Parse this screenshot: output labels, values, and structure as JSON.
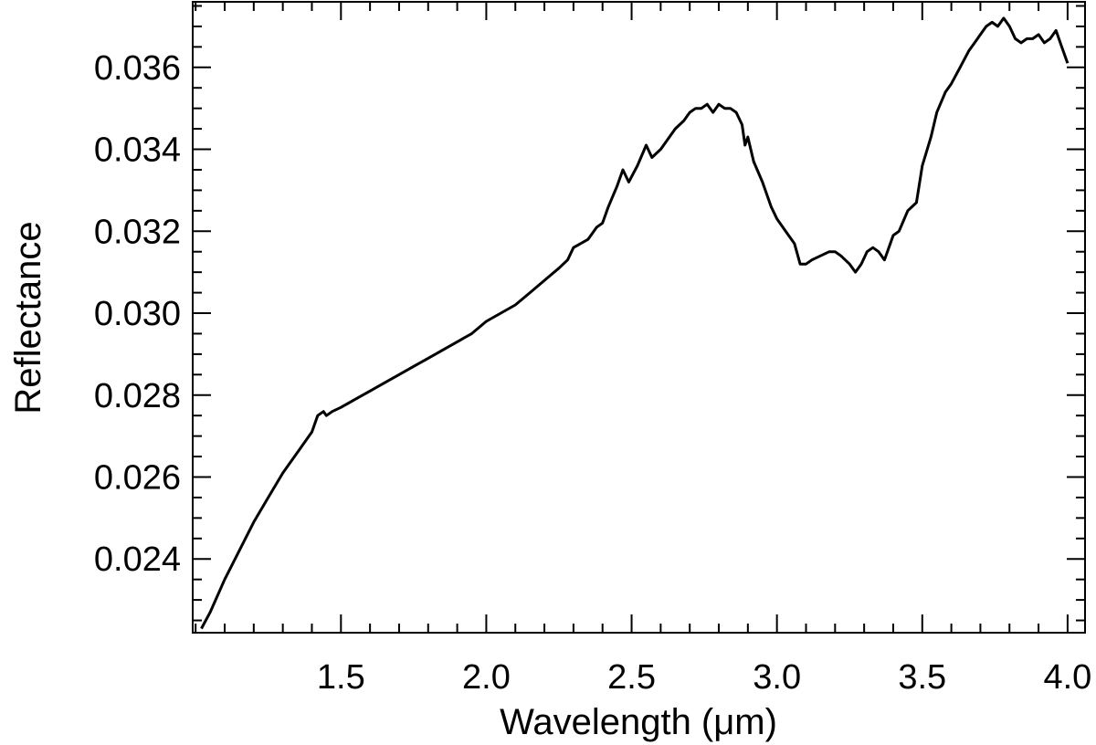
{
  "chart_data": {
    "type": "line",
    "title": "",
    "xlabel": "Wavelength (μm)",
    "ylabel": "Reflectance",
    "xlim": [
      0.99,
      4.06
    ],
    "ylim": [
      0.0222,
      0.0376
    ],
    "x_major_ticks": [
      1.5,
      2.0,
      2.5,
      3.0,
      3.5,
      4.0
    ],
    "x_tick_labels": [
      "1.5",
      "2.0",
      "2.5",
      "3.0",
      "3.5",
      "4.0"
    ],
    "x_minor_step": 0.1,
    "y_major_ticks": [
      0.024,
      0.026,
      0.028,
      0.03,
      0.032,
      0.034,
      0.036
    ],
    "y_tick_labels": [
      "0.024",
      "0.026",
      "0.028",
      "0.030",
      "0.032",
      "0.034",
      "0.036"
    ],
    "y_minor_step": 0.0005,
    "grid": false,
    "line_color": "#000000",
    "series": [
      {
        "x": [
          1.02,
          1.05,
          1.1,
          1.15,
          1.2,
          1.25,
          1.3,
          1.35,
          1.4,
          1.42,
          1.44,
          1.45,
          1.47,
          1.5,
          1.55,
          1.6,
          1.65,
          1.7,
          1.75,
          1.8,
          1.85,
          1.9,
          1.95,
          2.0,
          2.05,
          2.1,
          2.15,
          2.2,
          2.25,
          2.28,
          2.3,
          2.35,
          2.38,
          2.4,
          2.42,
          2.45,
          2.47,
          2.49,
          2.52,
          2.55,
          2.57,
          2.6,
          2.63,
          2.65,
          2.68,
          2.7,
          2.72,
          2.74,
          2.76,
          2.78,
          2.8,
          2.82,
          2.84,
          2.86,
          2.88,
          2.89,
          2.9,
          2.92,
          2.95,
          2.98,
          3.0,
          3.03,
          3.06,
          3.08,
          3.1,
          3.12,
          3.15,
          3.18,
          3.2,
          3.22,
          3.25,
          3.27,
          3.29,
          3.31,
          3.33,
          3.35,
          3.37,
          3.4,
          3.42,
          3.45,
          3.48,
          3.5,
          3.53,
          3.55,
          3.58,
          3.6,
          3.63,
          3.66,
          3.68,
          3.7,
          3.72,
          3.74,
          3.76,
          3.78,
          3.8,
          3.82,
          3.84,
          3.86,
          3.88,
          3.9,
          3.92,
          3.94,
          3.96,
          3.98,
          4.0
        ],
        "y": [
          0.0223,
          0.0227,
          0.0235,
          0.0242,
          0.0249,
          0.0255,
          0.0261,
          0.0266,
          0.0271,
          0.0275,
          0.0276,
          0.0275,
          0.0276,
          0.0277,
          0.0279,
          0.0281,
          0.0283,
          0.0285,
          0.0287,
          0.0289,
          0.0291,
          0.0293,
          0.0295,
          0.0298,
          0.03,
          0.0302,
          0.0305,
          0.0308,
          0.0311,
          0.0313,
          0.0316,
          0.0318,
          0.0321,
          0.0322,
          0.0326,
          0.0331,
          0.0335,
          0.0332,
          0.0336,
          0.0341,
          0.0338,
          0.034,
          0.0343,
          0.0345,
          0.0347,
          0.0349,
          0.035,
          0.035,
          0.0351,
          0.0349,
          0.0351,
          0.035,
          0.035,
          0.0349,
          0.0346,
          0.0341,
          0.0343,
          0.0337,
          0.0332,
          0.0326,
          0.0323,
          0.032,
          0.0317,
          0.0312,
          0.0312,
          0.0313,
          0.0314,
          0.0315,
          0.0315,
          0.0314,
          0.0312,
          0.031,
          0.0312,
          0.0315,
          0.0316,
          0.0315,
          0.0313,
          0.0319,
          0.032,
          0.0325,
          0.0327,
          0.0336,
          0.0343,
          0.0349,
          0.0354,
          0.0356,
          0.036,
          0.0364,
          0.0366,
          0.0368,
          0.037,
          0.0371,
          0.037,
          0.0372,
          0.037,
          0.0367,
          0.0366,
          0.0367,
          0.0367,
          0.0368,
          0.0366,
          0.0367,
          0.0369,
          0.0365,
          0.0361
        ]
      }
    ]
  }
}
